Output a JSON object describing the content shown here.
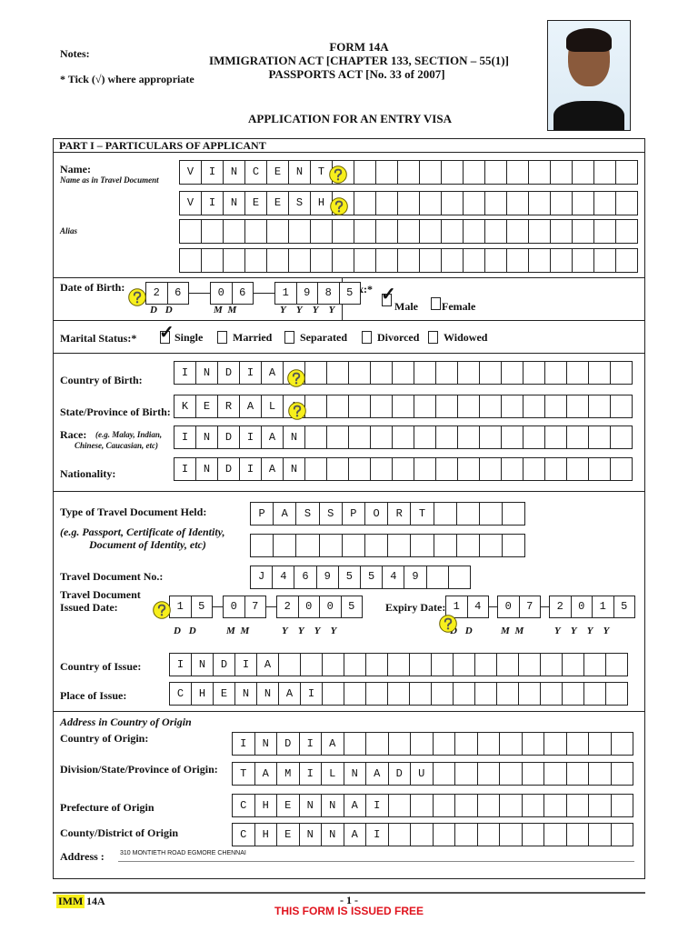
{
  "header": {
    "notes": "Notes:",
    "tick_note": "* Tick (√) where appropriate",
    "form": "FORM 14A",
    "act1": "IMMIGRATION ACT [CHAPTER 133, SECTION – 55(1)]",
    "act2": "PASSPORTS ACT [No. 33 of 2007]",
    "title": "APPLICATION FOR AN ENTRY VISA"
  },
  "part1": "PART I – PARTICULARS OF APPLICANT",
  "labels": {
    "name": "Name:",
    "name_sub": "Name as in Travel Document",
    "alias": "Alias",
    "dob": "Date of Birth:",
    "sex": "Sex:*",
    "male": "Male",
    "female": "Female",
    "marital": "Marital Status:*",
    "single": "Single",
    "married": "Married",
    "separated": "Separated",
    "divorced": "Divorced",
    "widowed": "Widowed",
    "country_birth": "Country of Birth:",
    "state_birth": "State/Province of Birth:",
    "race": "Race:",
    "race_eg1": "(e.g. Malay, Indian,",
    "race_eg2": "Chinese, Caucasian, etc)",
    "nationality": "Nationality:",
    "doc_type": "Type of Travel Document Held:",
    "doc_eg1": "(e.g. Passport, Certificate of Identity,",
    "doc_eg2": "Document of Identity, etc)",
    "doc_no": "Travel Document No.:",
    "issued1": "Travel Document",
    "issued2": "Issued Date:",
    "expiry": "Expiry Date:",
    "country_issue": "Country of Issue:",
    "place_issue": "Place of Issue:",
    "addr_head": "Address in Country of Origin",
    "country_origin": "Country of Origin:",
    "division": "Division/State/Province of Origin:",
    "prefecture": "Prefecture of Origin",
    "county": "County/District of Origin",
    "address": "Address :",
    "dd": "D D",
    "mm": "M M",
    "yyyy": "Y Y Y Y"
  },
  "values": {
    "name1": "VINCENT",
    "name2": "VINEESH",
    "alias1": "",
    "alias2": "",
    "dob": {
      "dd": "26",
      "mm": "06",
      "yyyy": "1985"
    },
    "sex": "Male",
    "marital": "Single",
    "country_birth": "INDIA",
    "state_birth": "KERALA",
    "race": "INDIAN",
    "nationality": "INDIAN",
    "doc_type": "PASSPORT",
    "doc_type2": "",
    "doc_no": "J4695549",
    "issued": {
      "dd": "15",
      "mm": "07",
      "yyyy": "2005"
    },
    "expiry": {
      "dd": "14",
      "mm": "07",
      "yyyy": "2015"
    },
    "country_issue": "INDIA",
    "place_issue": "CHENNAI",
    "country_origin": "INDIA",
    "division": "TAMILNADU",
    "prefecture": "CHENNAI",
    "county": "CHENNAI",
    "address": "310 MONTIETH ROAD EGMORE CHENNAI"
  },
  "help_icon": "question-mark-icon",
  "help_color": "#f7ef1c",
  "footer": {
    "code_hl": "IMM",
    "code": "14A",
    "page": "- 1 -",
    "free": "THIS FORM IS ISSUED FREE",
    "free_color": "#e0141e",
    "hl_color": "#f7ef1c"
  }
}
